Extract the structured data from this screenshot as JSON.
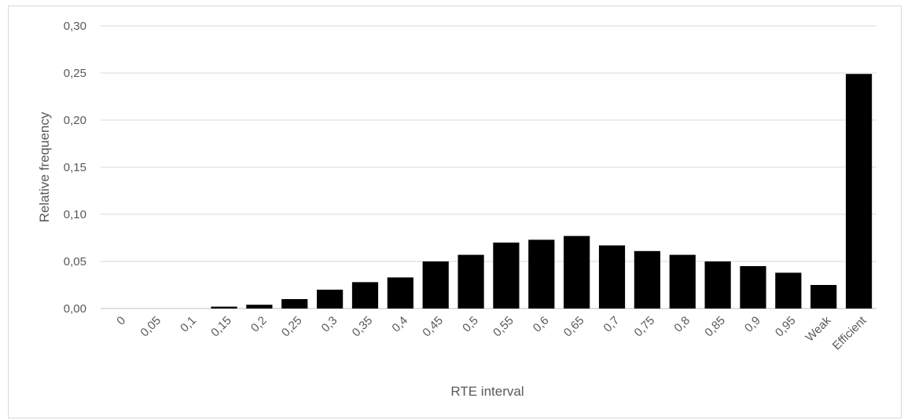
{
  "chart_data": {
    "type": "bar",
    "title": "",
    "xlabel": "RTE interval",
    "ylabel": "Relative frequency",
    "categories": [
      "0",
      "0,05",
      "0,1",
      "0,15",
      "0,2",
      "0,25",
      "0,3",
      "0,35",
      "0,4",
      "0,45",
      "0,5",
      "0,55",
      "0,6",
      "0,65",
      "0,7",
      "0,75",
      "0,8",
      "0,85",
      "0,9",
      "0,95",
      "Weak",
      "Efficient"
    ],
    "values": [
      0.0,
      0.0,
      0.0,
      0.002,
      0.004,
      0.01,
      0.02,
      0.028,
      0.033,
      0.05,
      0.057,
      0.07,
      0.073,
      0.077,
      0.067,
      0.061,
      0.057,
      0.05,
      0.045,
      0.038,
      0.025,
      0.249
    ],
    "ylim": [
      0,
      0.3
    ],
    "yticks": [
      "0,00",
      "0,05",
      "0,10",
      "0,15",
      "0,20",
      "0,25",
      "0,30"
    ],
    "ytick_values": [
      0,
      0.05,
      0.1,
      0.15,
      0.2,
      0.25,
      0.3
    ],
    "grid": true,
    "bar_color": "#000000",
    "grid_color": "#d9d9d9",
    "text_color": "#595959"
  }
}
